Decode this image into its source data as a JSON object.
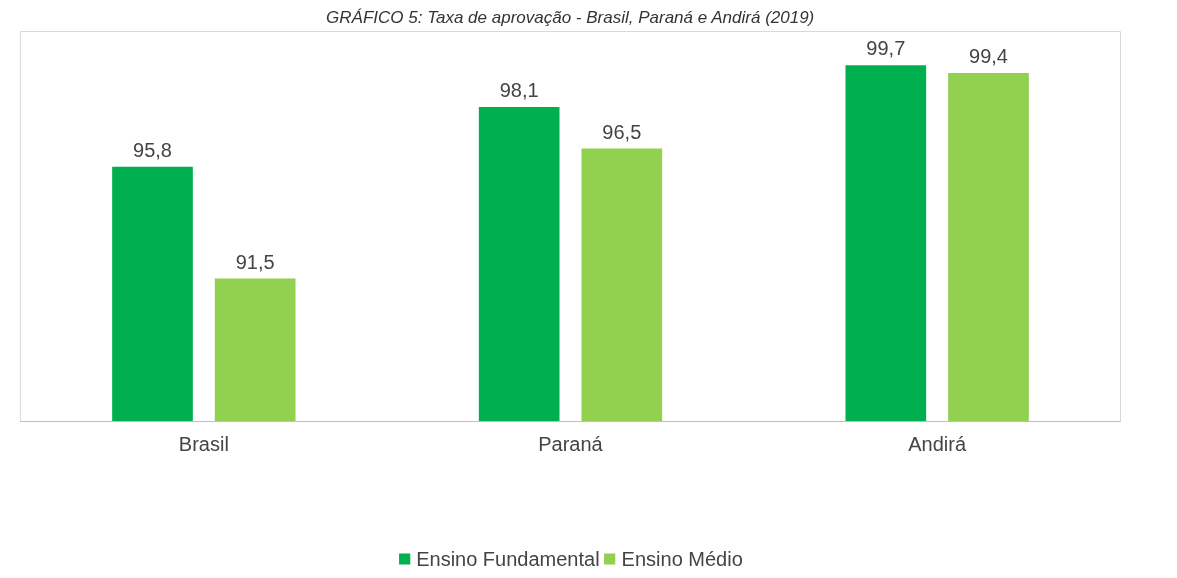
{
  "chart_data": {
    "type": "bar",
    "title": "GRÁFICO 5: Taxa de aprovação - Brasil, Paraná e Andirá (2019)",
    "categories": [
      "Brasil",
      "Paraná",
      "Andirá"
    ],
    "series": [
      {
        "name": "Ensino Fundamental",
        "color": "#00b050",
        "values": [
          95.8,
          98.1,
          99.7
        ],
        "value_labels": [
          "95,8",
          "98,1",
          "99,7"
        ]
      },
      {
        "name": "Ensino Médio",
        "color": "#92d050",
        "values": [
          91.5,
          96.5,
          99.4
        ],
        "value_labels": [
          "91,5",
          "96,5",
          "99,4"
        ]
      }
    ],
    "ylim": [
      86,
      101
    ],
    "tick_labels": "x",
    "legend": "bottom"
  }
}
